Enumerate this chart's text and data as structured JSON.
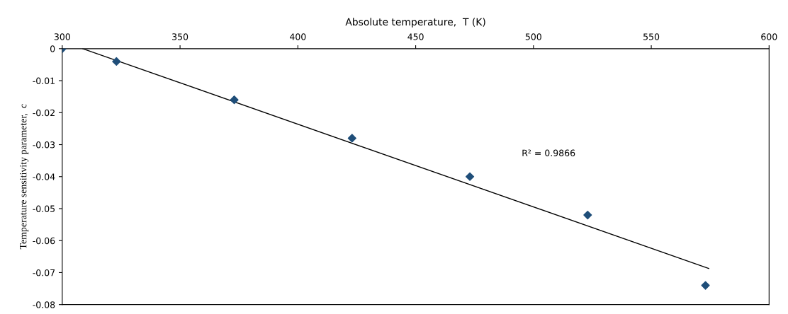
{
  "chart_data": {
    "type": "scatter",
    "xlabel": "Absolute temperature,  T (K)",
    "ylabel": "Temperature sensitivity parameter,  c",
    "series": [
      {
        "type": "scatter",
        "color": "#1f4e79",
        "marker": "diamond",
        "x": [
          300,
          323,
          373,
          423,
          473,
          523,
          573
        ],
        "values": [
          0,
          -0.004,
          -0.016,
          -0.028,
          -0.04,
          -0.052,
          -0.074
        ]
      },
      {
        "type": "line",
        "color": "#000000",
        "marker": "none",
        "x": [
          308.7,
          574.4
        ],
        "values": [
          0,
          -0.0687
        ]
      }
    ],
    "annotations": [
      "R² = 0.9866"
    ],
    "xlim": [
      300,
      600
    ],
    "xticks": [
      300,
      350,
      400,
      450,
      500,
      550,
      600
    ],
    "ylim": [
      -0.08,
      0
    ],
    "yticks": [
      0,
      -0.01,
      -0.02,
      -0.03,
      -0.04,
      -0.05,
      -0.06,
      -0.07,
      -0.08
    ],
    "grid": false,
    "legend": false
  }
}
